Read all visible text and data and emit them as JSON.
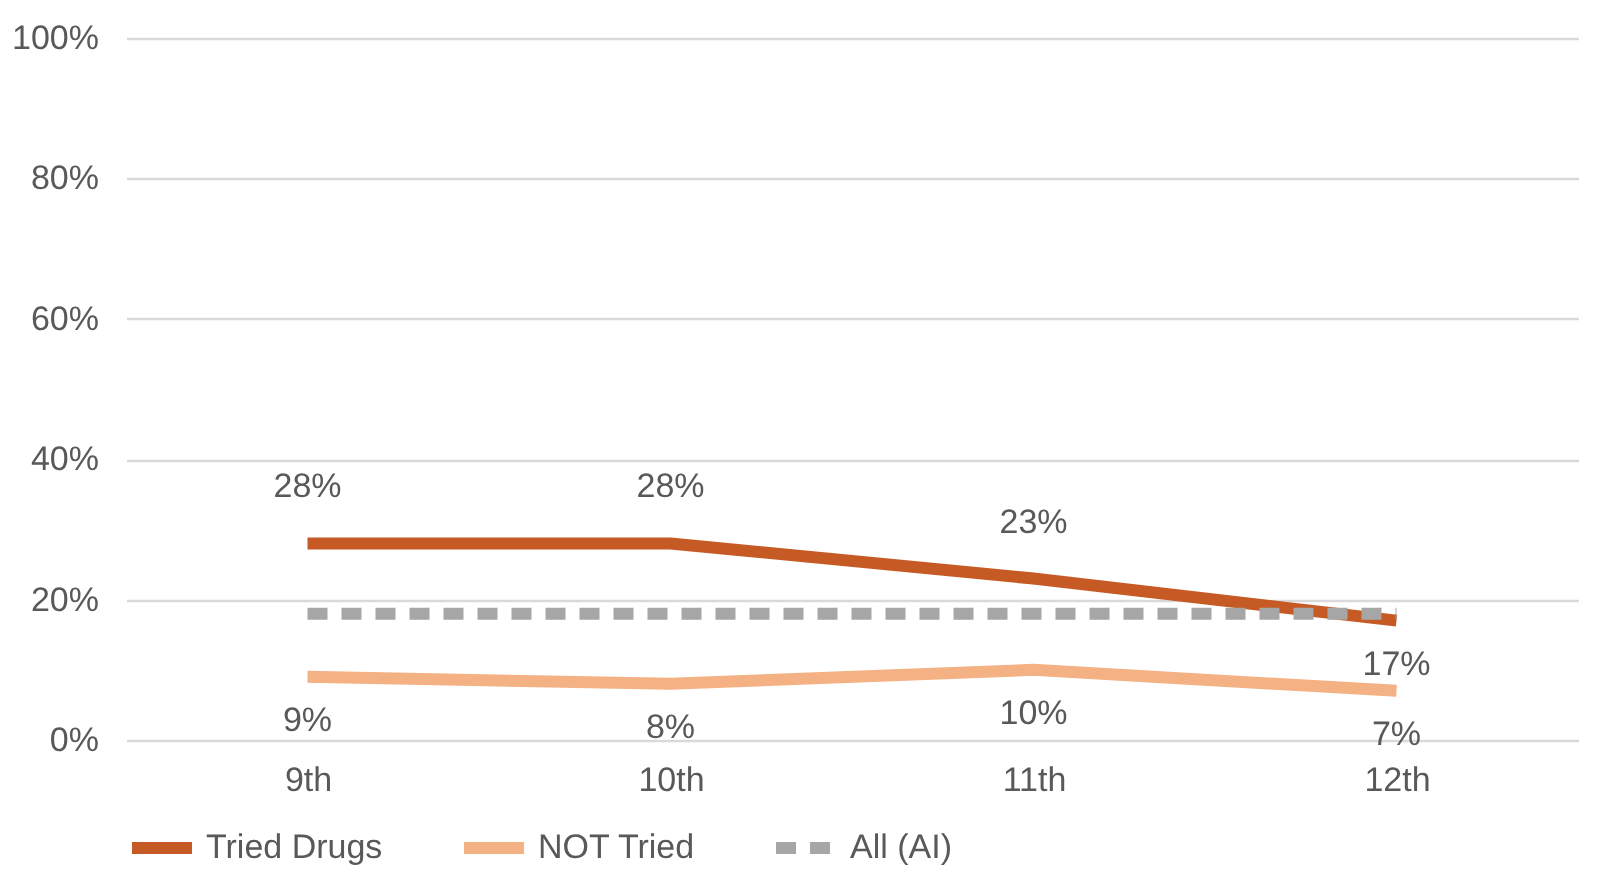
{
  "chart_data": {
    "type": "line",
    "categories": [
      "9th",
      "10th",
      "11th",
      "12th"
    ],
    "series": [
      {
        "name": "Tried Drugs",
        "color": "#c55a24",
        "values": [
          28,
          28,
          23,
          17
        ],
        "value_labels": [
          "28%",
          "28%",
          "23%",
          "17%"
        ],
        "line_style": "solid"
      },
      {
        "name": "NOT Tried",
        "color": "#f4b183",
        "values": [
          9,
          8,
          10,
          7
        ],
        "value_labels": [
          "9%",
          "8%",
          "10%",
          "7%"
        ],
        "line_style": "solid"
      },
      {
        "name": "All (AI)",
        "color": "#a6a6a6",
        "values": [
          18,
          18,
          18,
          18
        ],
        "line_style": "dashed"
      }
    ],
    "ylim": [
      0,
      100
    ],
    "yticks": [
      {
        "value": 0,
        "label": "0%"
      },
      {
        "value": 20,
        "label": "20%"
      },
      {
        "value": 40,
        "label": "40%"
      },
      {
        "value": 60,
        "label": "60%"
      },
      {
        "value": 80,
        "label": "80%"
      },
      {
        "value": 100,
        "label": "100%"
      }
    ],
    "grid": "y",
    "legend": "bottom",
    "marker": "none"
  }
}
